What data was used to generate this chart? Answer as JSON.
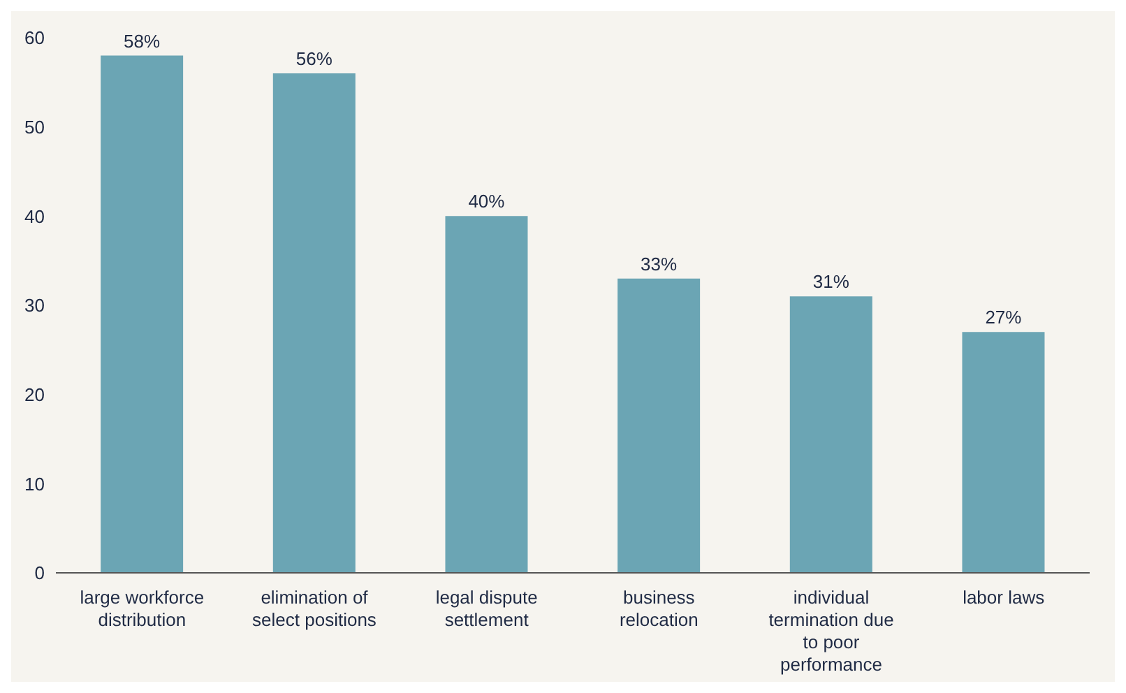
{
  "chart_data": {
    "type": "bar",
    "categories": [
      "large workforce distribution",
      "elimination of select positions",
      "legal dispute settlement",
      "business relocation",
      "individual termination due to poor performance",
      "labor laws"
    ],
    "values": [
      58,
      56,
      40,
      33,
      31,
      27
    ],
    "color": "#6ba5b4",
    "value_labels": [
      "58%",
      "56%",
      "40%",
      "33%",
      "31%",
      "27%"
    ],
    "ylim": [
      0,
      60
    ],
    "yticks": [
      0,
      10,
      20,
      30,
      40,
      50,
      60
    ],
    "grid": false,
    "legend": false
  }
}
